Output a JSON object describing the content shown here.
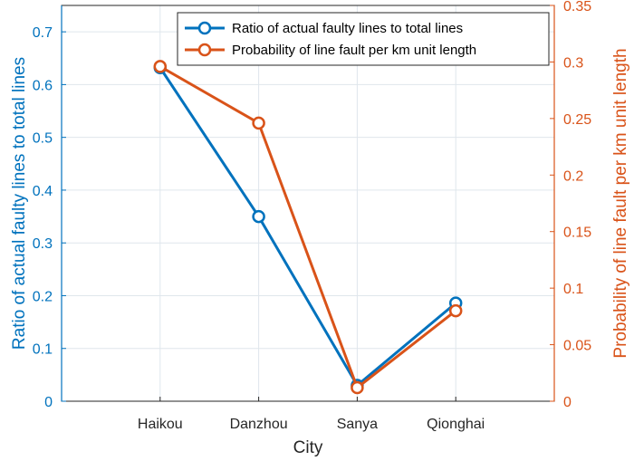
{
  "chart_data": {
    "type": "line",
    "categories": [
      "Haikou",
      "Danzhou",
      "Sanya",
      "Qionghai"
    ],
    "xlabel": "City",
    "series": [
      {
        "name": "Ratio of actual faulty lines to total lines",
        "axis": "left",
        "color": "#0072BD",
        "values": [
          0.632,
          0.35,
          0.03,
          0.186
        ]
      },
      {
        "name": "Probability of line fault per km unit length",
        "axis": "right",
        "color": "#D95319",
        "values": [
          0.296,
          0.246,
          0.012,
          0.08
        ]
      }
    ],
    "y_left": {
      "label": "Ratio of actual faulty lines to total lines",
      "ylim": [
        0,
        0.75
      ],
      "ticks": [
        "0",
        "0.1",
        "0.2",
        "0.3",
        "0.4",
        "0.5",
        "0.6",
        "0.7"
      ],
      "color": "#0072BD"
    },
    "y_right": {
      "label": "Probability of line fault per km unit length",
      "ylim": [
        0,
        0.35
      ],
      "ticks": [
        "0",
        "0.05",
        "0.1",
        "0.15",
        "0.2",
        "0.25",
        "0.3",
        "0.35"
      ],
      "color": "#D95319"
    },
    "grid": true,
    "legend_position": "top-right"
  }
}
